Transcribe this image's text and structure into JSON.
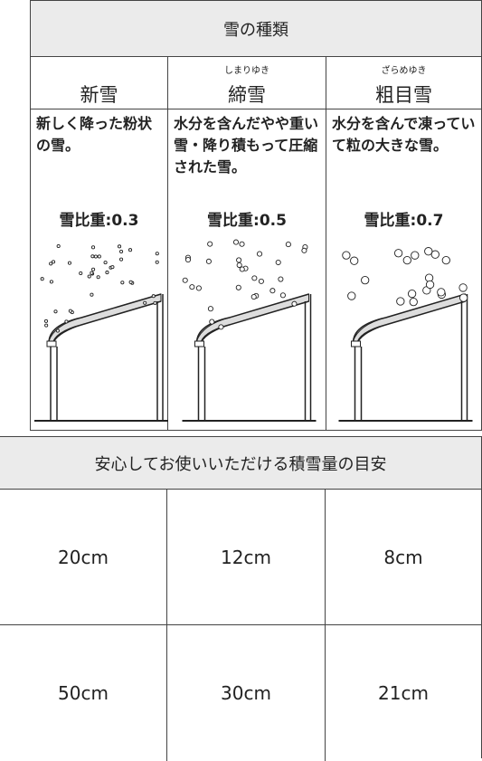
{
  "top": {
    "title": "雪の種類",
    "columns": [
      {
        "name": "新雪",
        "description": "新しく降った粉状の雪。",
        "gravity": "雪比重:0.3"
      },
      {
        "ruby": "しまりゆき",
        "name": "締雪",
        "description": "水分を含んだやや重い雪・降り積もって圧縮された雪。",
        "gravity": "雪比重:0.5"
      },
      {
        "ruby": "ざらめゆき",
        "name": "粗目雪",
        "description": "水分を含んで凍っていて粒の大きな雪。",
        "gravity": "雪比重:0.7"
      }
    ]
  },
  "bottom": {
    "title": "安心してお使いいただける積雪量の目安",
    "rows": [
      [
        "20cm",
        "12cm",
        "8cm"
      ],
      [
        "50cm",
        "30cm",
        "21cm"
      ]
    ]
  }
}
